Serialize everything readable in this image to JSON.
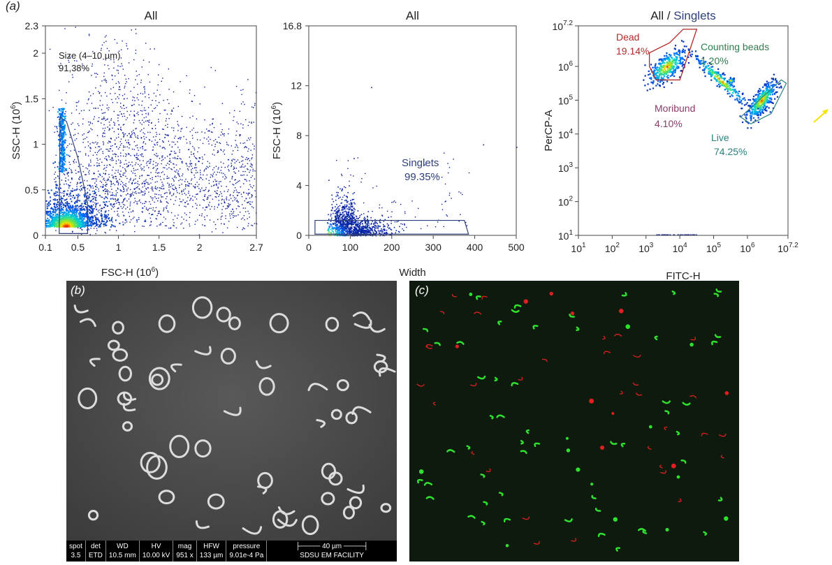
{
  "panel_labels": {
    "a": "(a)",
    "b": "(b)",
    "c": "(c)"
  },
  "chart_data": [
    {
      "type": "scatter",
      "title": "All",
      "xlabel": "FSC-H (10^6)",
      "ylabel": "SSC-H (10^6)",
      "xlim": [
        0.1,
        2.7
      ],
      "ylim": [
        0,
        2.3
      ],
      "x_ticks": [
        "0.1",
        "0.5",
        "1",
        "1.5",
        "2",
        "2.7"
      ],
      "x_tick_values": [
        0.1,
        0.5,
        1,
        1.5,
        2,
        2.7
      ],
      "y_ticks": [
        "0",
        "0.5",
        "1",
        "1.5",
        "2",
        "2.3"
      ],
      "y_tick_values": [
        0,
        0.5,
        1,
        1.5,
        2,
        2.3
      ],
      "gate": {
        "name": "Size (4–10 µm)",
        "percent": "91,38%"
      },
      "density_peak": [
        0.35,
        0.1
      ]
    },
    {
      "type": "scatter",
      "title": "All",
      "xlabel": "Width",
      "ylabel": "FSC-H (10^6)",
      "xlim": [
        0,
        500
      ],
      "ylim": [
        0,
        16.8
      ],
      "x_ticks": [
        "0",
        "100",
        "200",
        "300",
        "400",
        "500"
      ],
      "x_tick_values": [
        0,
        100,
        200,
        300,
        400,
        500
      ],
      "y_ticks": [
        "0",
        "4",
        "8",
        "12",
        "16.8"
      ],
      "y_tick_values": [
        0,
        4,
        8,
        12,
        16.8
      ],
      "gate": {
        "name": "Singlets",
        "percent": "99.35%",
        "x_range": [
          15,
          385
        ],
        "y_range": [
          0.1,
          1.2
        ]
      },
      "density_peak": [
        40,
        0.4
      ]
    },
    {
      "type": "scatter",
      "title_part1": "All / ",
      "title_part2": "Singlets",
      "xlabel": "FITC-H",
      "ylabel": "PerCP-A",
      "x_log_range": [
        1,
        7.2
      ],
      "y_log_range": [
        1,
        7.2
      ],
      "log_scale": true,
      "tick_base": "10",
      "x_tick_exponents": [
        "1",
        "2",
        "3",
        "4",
        "5",
        "6",
        "7.2"
      ],
      "y_tick_exponents": [
        "1",
        "2",
        "3",
        "4",
        "5",
        "6",
        "7.2"
      ],
      "populations": [
        {
          "name": "Dead",
          "percent": "19.14%",
          "color": "#b02a2a"
        },
        {
          "name": "Counting beads",
          "percent": "1.20%",
          "color": "#2e7d4f"
        },
        {
          "name": "Moribund",
          "percent": "4.10%",
          "color": "#8b3a6b"
        },
        {
          "name": "Live",
          "percent": "74.25%",
          "color": "#2a8080"
        }
      ]
    }
  ],
  "sem_info": {
    "headers": [
      "spot",
      "det",
      "WD",
      "HV",
      "mag",
      "HFW",
      "pressure"
    ],
    "values": [
      "3.5",
      "ETD",
      "10.5 mm",
      "10.00 kV",
      "951 x",
      "133 µm",
      "9.01e-4 Pa"
    ],
    "scale_label": "40 µm",
    "facility": "SDSU EM FACILITY"
  },
  "colors": {
    "gate": "#2f3f7a",
    "dots": "#0a1a9a",
    "title_accent": "#2f3f7a"
  }
}
